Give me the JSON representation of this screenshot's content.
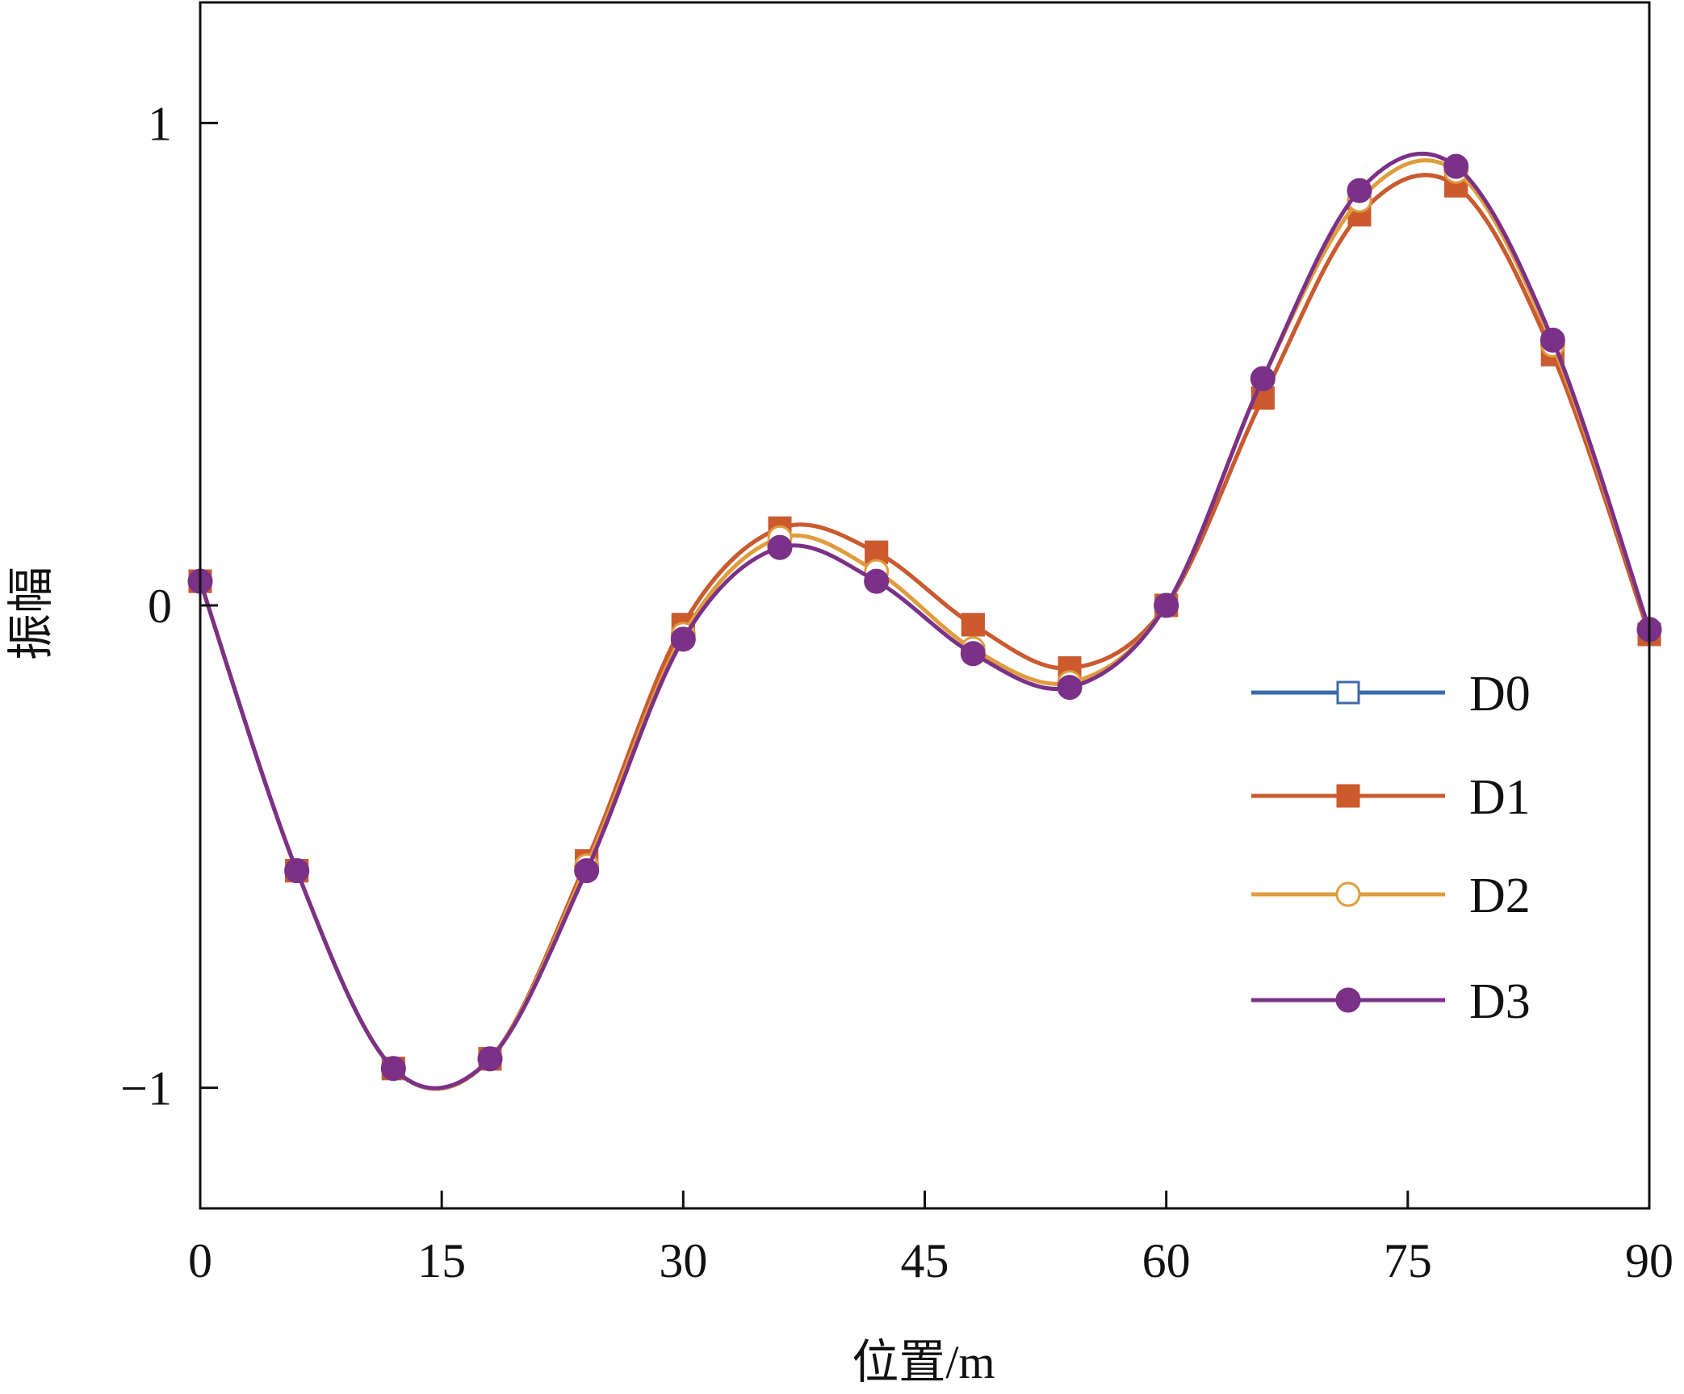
{
  "chart_data": {
    "type": "line",
    "xlabel": "位置/m",
    "ylabel": "振幅",
    "xlim": [
      0,
      90
    ],
    "ylim": [
      -1.25,
      1.25
    ],
    "xticks": [
      0,
      15,
      30,
      45,
      60,
      75,
      90
    ],
    "xtick_labels": [
      "0",
      "15",
      "30",
      "45",
      "60",
      "75",
      "90"
    ],
    "yticks": [
      -1,
      0,
      1
    ],
    "ytick_labels": [
      "−1",
      "0",
      "1"
    ],
    "grid": false,
    "legend_position": "right",
    "series": [
      {
        "name": "D0",
        "color": "#3d6aa8",
        "marker": "open-square",
        "x": [
          0,
          6,
          12,
          18,
          24,
          30,
          36,
          42,
          48,
          54,
          60,
          66,
          72,
          78,
          84,
          90
        ],
        "y": [
          0.05,
          -0.55,
          -0.96,
          -0.94,
          -0.53,
          -0.04,
          0.16,
          0.11,
          -0.04,
          -0.13,
          0.0,
          0.43,
          0.81,
          0.87,
          0.52,
          -0.06
        ]
      },
      {
        "name": "D1",
        "color": "#cc5a2c",
        "marker": "filled-square",
        "x": [
          0,
          6,
          12,
          18,
          24,
          30,
          36,
          42,
          48,
          54,
          60,
          66,
          72,
          78,
          84,
          90
        ],
        "y": [
          0.05,
          -0.55,
          -0.96,
          -0.94,
          -0.53,
          -0.04,
          0.16,
          0.11,
          -0.04,
          -0.13,
          0.0,
          0.43,
          0.81,
          0.87,
          0.52,
          -0.06
        ]
      },
      {
        "name": "D2",
        "color": "#e09c3c",
        "marker": "open-circle",
        "x": [
          0,
          6,
          12,
          18,
          24,
          30,
          36,
          42,
          48,
          54,
          60,
          66,
          72,
          78,
          84,
          90
        ],
        "y": [
          0.05,
          -0.55,
          -0.96,
          -0.94,
          -0.54,
          -0.06,
          0.14,
          0.07,
          -0.09,
          -0.16,
          0.0,
          0.47,
          0.84,
          0.9,
          0.54,
          -0.05
        ]
      },
      {
        "name": "D3",
        "color": "#7b3187",
        "marker": "filled-circle",
        "x": [
          0,
          6,
          12,
          18,
          24,
          30,
          36,
          42,
          48,
          54,
          60,
          66,
          72,
          78,
          84,
          90
        ],
        "y": [
          0.05,
          -0.55,
          -0.96,
          -0.94,
          -0.55,
          -0.07,
          0.12,
          0.05,
          -0.1,
          -0.17,
          0.0,
          0.47,
          0.86,
          0.91,
          0.55,
          -0.05
        ]
      }
    ]
  }
}
